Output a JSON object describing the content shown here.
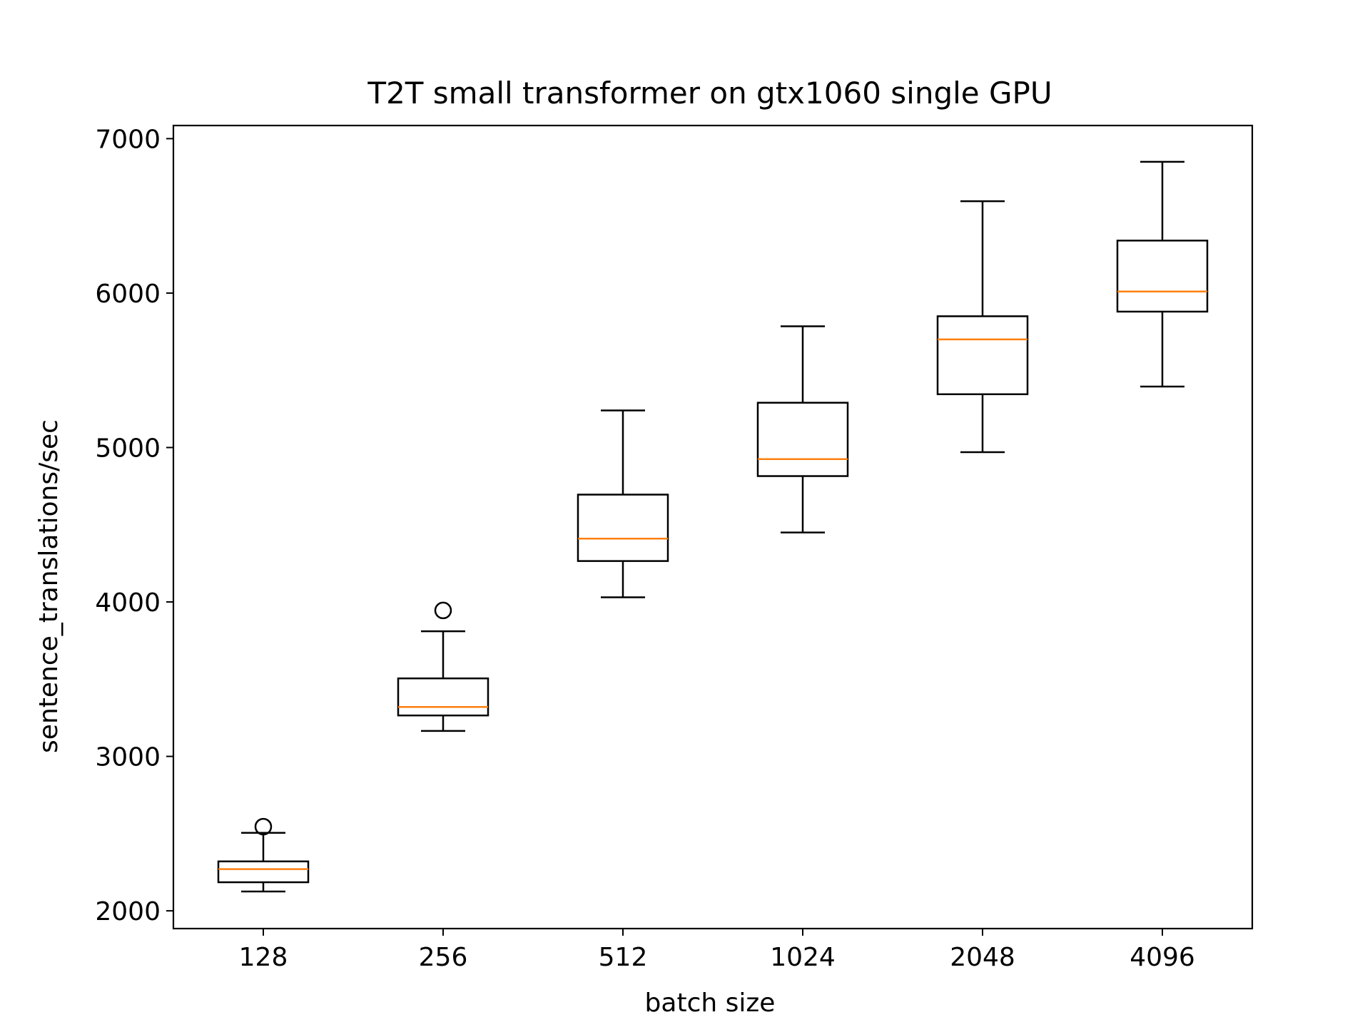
{
  "chart_data": {
    "type": "boxplot",
    "title": "T2T small transformer on gtx1060 single GPU",
    "xlabel": "batch size",
    "ylabel": "sentence_translations/sec",
    "ylim": [
      1885,
      7085
    ],
    "yticks": [
      2000,
      3000,
      4000,
      5000,
      6000,
      7000
    ],
    "grid": false,
    "colors": {
      "box": "#000000",
      "median": "#ff7f0e",
      "background": "#ffffff"
    },
    "categories": [
      "128",
      "256",
      "512",
      "1024",
      "2048",
      "4096"
    ],
    "boxes": [
      {
        "label": "128",
        "whisker_low": 2125,
        "q1": 2185,
        "median": 2270,
        "q3": 2320,
        "whisker_high": 2505,
        "outliers": [
          2545
        ]
      },
      {
        "label": "256",
        "whisker_low": 3165,
        "q1": 3265,
        "median": 3320,
        "q3": 3505,
        "whisker_high": 3810,
        "outliers": [
          3945
        ]
      },
      {
        "label": "512",
        "whisker_low": 4030,
        "q1": 4265,
        "median": 4410,
        "q3": 4695,
        "whisker_high": 5240,
        "outliers": []
      },
      {
        "label": "1024",
        "whisker_low": 4450,
        "q1": 4815,
        "median": 4925,
        "q3": 5290,
        "whisker_high": 5785,
        "outliers": []
      },
      {
        "label": "2048",
        "whisker_low": 4970,
        "q1": 5345,
        "median": 5700,
        "q3": 5850,
        "whisker_high": 6595,
        "outliers": []
      },
      {
        "label": "4096",
        "whisker_low": 5395,
        "q1": 5880,
        "median": 6010,
        "q3": 6340,
        "whisker_high": 6850,
        "outliers": []
      }
    ]
  }
}
